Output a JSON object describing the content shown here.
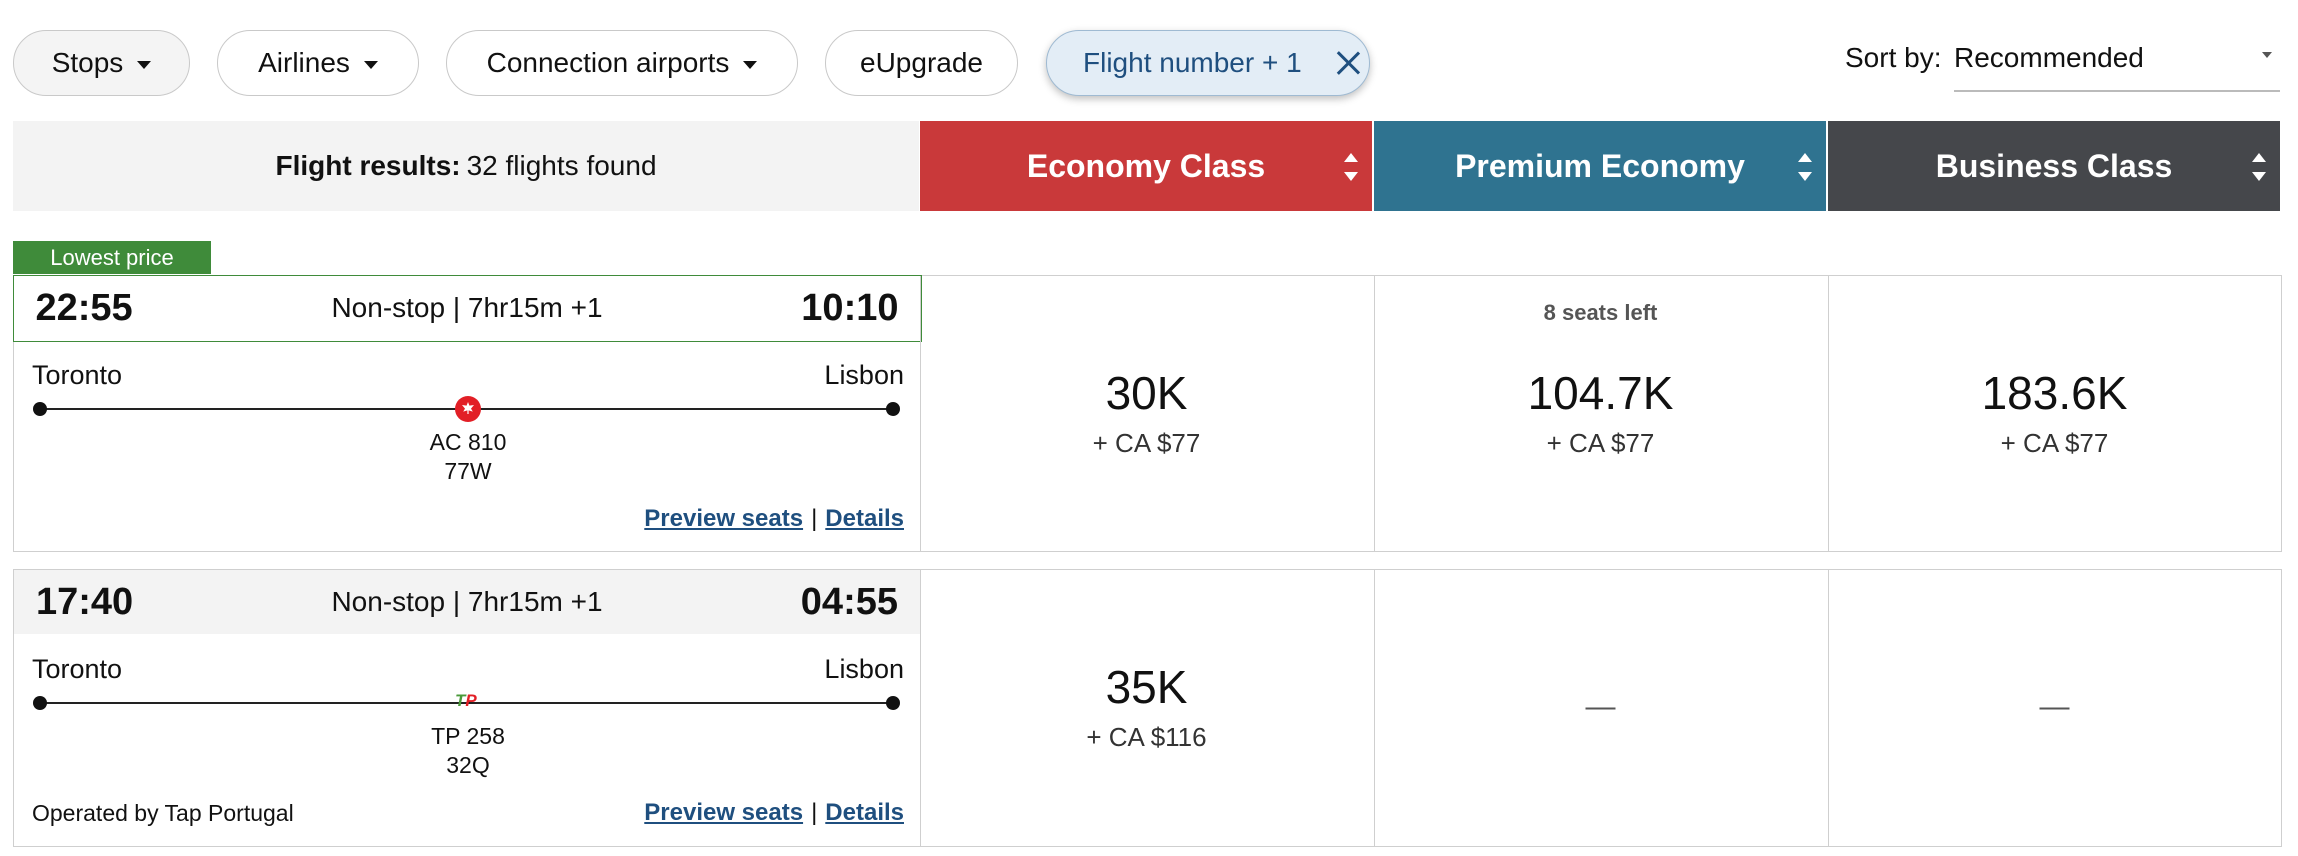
{
  "filters": {
    "stops": "Stops",
    "airlines": "Airlines",
    "connection_airports": "Connection airports",
    "eupgrade": "eUpgrade",
    "active_filter": "Flight number + 1"
  },
  "sort": {
    "label": "Sort by:",
    "value": "Recommended"
  },
  "results": {
    "label": "Flight results:",
    "count_text": "32 flights found"
  },
  "cabins": [
    {
      "label": "Economy Class",
      "color": "#c9393a"
    },
    {
      "label": "Premium Economy",
      "color": "#2f7390"
    },
    {
      "label": "Business Class",
      "color": "#45474b"
    }
  ],
  "flights": [
    {
      "badge": "Lowest price",
      "depart": "22:55",
      "duration": "Non-stop | 7hr15m +1",
      "arrive": "10:10",
      "origin": "Toronto",
      "destination": "Lisbon",
      "airline_icon": "air-canada-icon",
      "flight_number": "AC 810",
      "aircraft": "77W",
      "preview_seats": "Preview seats",
      "separator": "|",
      "details": "Details",
      "prices": [
        {
          "seats_left": "",
          "points": "30K",
          "cash": "+ CA $77"
        },
        {
          "seats_left": "8 seats left",
          "points": "104.7K",
          "cash": "+ CA $77"
        },
        {
          "seats_left": "",
          "points": "183.6K",
          "cash": "+ CA $77"
        }
      ]
    },
    {
      "depart": "17:40",
      "duration": "Non-stop | 7hr15m +1",
      "arrive": "04:55",
      "origin": "Toronto",
      "destination": "Lisbon",
      "airline_icon": "tap-portugal-icon",
      "airline_logo_text": "TP",
      "flight_number": "TP 258",
      "aircraft": "32Q",
      "operated_by": "Operated by Tap Portugal",
      "preview_seats": "Preview seats",
      "separator": "|",
      "details": "Details",
      "prices": [
        {
          "points": "35K",
          "cash": "+ CA $116"
        },
        {
          "unavailable": "—"
        },
        {
          "unavailable": "—"
        }
      ]
    }
  ]
}
